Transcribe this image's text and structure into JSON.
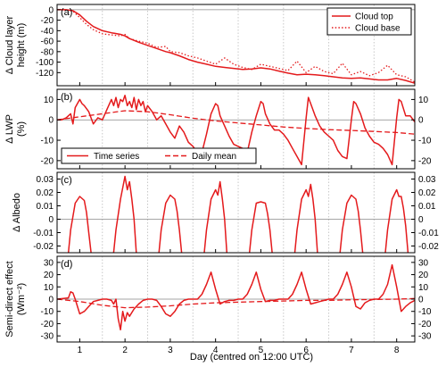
{
  "figure": {
    "xlabel": "Day (centred on 12:00 UTC)",
    "xticks": [
      1,
      2,
      3,
      4,
      5,
      6,
      7,
      8
    ],
    "xlim": [
      0.5,
      8.4
    ],
    "day_lines": [
      1.5,
      2.5,
      3.5,
      4.5,
      5.5,
      6.5,
      7.5
    ]
  },
  "colors": {
    "series": "#e41a1c",
    "axis": "#000000",
    "zero_line": "#888888",
    "day_line": "#c8c8c8"
  },
  "chart_data": [
    {
      "type": "line",
      "panel_label": "(a)",
      "ylabel_line1": "Δ Cloud layer",
      "ylabel_line2": "height (m)",
      "ylim": [
        -145,
        10
      ],
      "yticks": [
        0,
        -20,
        -40,
        -60,
        -80,
        -100,
        -120
      ],
      "right_ticks": false,
      "legend_position": "top-right",
      "series": [
        {
          "name": "Cloud top",
          "style": "solid",
          "x": [
            0.5,
            0.7,
            0.85,
            1.0,
            1.15,
            1.3,
            1.5,
            1.7,
            1.9,
            2.0,
            2.1,
            2.3,
            2.5,
            2.7,
            2.9,
            3.0,
            3.2,
            3.4,
            3.6,
            3.8,
            4.0,
            4.2,
            4.4,
            4.6,
            4.8,
            5.0,
            5.2,
            5.4,
            5.6,
            5.8,
            6.0,
            6.2,
            6.4,
            6.6,
            6.8,
            7.0,
            7.2,
            7.4,
            7.6,
            7.8,
            8.0,
            8.2,
            8.4
          ],
          "y": [
            0,
            0,
            -2,
            -10,
            -22,
            -32,
            -40,
            -44,
            -47,
            -50,
            -55,
            -62,
            -68,
            -74,
            -80,
            -82,
            -88,
            -95,
            -100,
            -104,
            -108,
            -110,
            -112,
            -114,
            -113,
            -111,
            -113,
            -117,
            -121,
            -124,
            -123,
            -124,
            -126,
            -128,
            -130,
            -131,
            -130,
            -132,
            -134,
            -134,
            -131,
            -135,
            -140
          ]
        },
        {
          "name": "Cloud base",
          "style": "dotted",
          "x": [
            0.5,
            0.7,
            0.85,
            1.0,
            1.15,
            1.3,
            1.5,
            1.7,
            1.9,
            2.0,
            2.1,
            2.3,
            2.5,
            2.7,
            2.9,
            3.0,
            3.2,
            3.4,
            3.6,
            3.8,
            4.0,
            4.2,
            4.4,
            4.6,
            4.8,
            5.0,
            5.2,
            5.4,
            5.6,
            5.8,
            6.0,
            6.2,
            6.4,
            6.6,
            6.8,
            7.0,
            7.2,
            7.4,
            7.6,
            7.8,
            8.0,
            8.2,
            8.4
          ],
          "y": [
            0,
            0,
            -3,
            -15,
            -28,
            -38,
            -46,
            -48,
            -50,
            -47,
            -55,
            -60,
            -64,
            -72,
            -70,
            -80,
            -82,
            -88,
            -92,
            -98,
            -104,
            -92,
            -104,
            -110,
            -114,
            -104,
            -108,
            -112,
            -116,
            -98,
            -120,
            -108,
            -118,
            -122,
            -102,
            -124,
            -118,
            -126,
            -120,
            -106,
            -124,
            -128,
            -138
          ]
        }
      ]
    },
    {
      "type": "line",
      "panel_label": "(b)",
      "ylabel_line1": "Δ LWP",
      "ylabel_line2": "(%)",
      "ylim": [
        -24,
        15
      ],
      "yticks": [
        10,
        0,
        -10,
        -20
      ],
      "right_ticks": true,
      "legend_position": "lower-left",
      "series": [
        {
          "name": "Time series",
          "style": "solid",
          "x": [
            0.5,
            0.6,
            0.7,
            0.8,
            0.85,
            0.9,
            0.95,
            1.0,
            1.05,
            1.1,
            1.2,
            1.3,
            1.4,
            1.5,
            1.6,
            1.7,
            1.75,
            1.8,
            1.85,
            1.9,
            1.95,
            2.0,
            2.05,
            2.1,
            2.15,
            2.2,
            2.25,
            2.3,
            2.35,
            2.4,
            2.45,
            2.5,
            2.6,
            2.7,
            2.8,
            2.9,
            3.0,
            3.1,
            3.2,
            3.3,
            3.4,
            3.5,
            3.6,
            3.7,
            3.8,
            3.9,
            4.0,
            4.05,
            4.1,
            4.2,
            4.3,
            4.4,
            4.5,
            4.6,
            4.7,
            4.8,
            4.9,
            5.0,
            5.05,
            5.1,
            5.2,
            5.3,
            5.4,
            5.5,
            5.6,
            5.7,
            5.8,
            5.9,
            6.0,
            6.05,
            6.1,
            6.2,
            6.3,
            6.4,
            6.5,
            6.6,
            6.7,
            6.8,
            6.9,
            7.0,
            7.05,
            7.1,
            7.2,
            7.3,
            7.4,
            7.5,
            7.6,
            7.7,
            7.8,
            7.9,
            8.0,
            8.05,
            8.1,
            8.2,
            8.3,
            8.4
          ],
          "y": [
            0,
            0,
            1,
            3,
            -2,
            6,
            8,
            10,
            8,
            7,
            4,
            -2,
            1,
            0,
            5,
            10,
            7,
            11,
            6,
            10,
            9,
            12,
            7,
            9,
            6,
            11,
            5,
            10,
            7,
            9,
            4,
            7,
            4,
            0,
            2,
            -2,
            -6,
            -9,
            -3,
            -6,
            -11,
            -13,
            -16,
            -16,
            -7,
            3,
            8,
            7,
            2,
            -3,
            -8,
            -12,
            -13,
            -14,
            -16,
            -6,
            2,
            9,
            8,
            3,
            -2,
            -5,
            -5,
            -7,
            -10,
            -14,
            -18,
            -22,
            1,
            11,
            8,
            2,
            -3,
            -6,
            -8,
            -10,
            -15,
            -18,
            -19,
            0,
            9,
            8,
            3,
            -4,
            -8,
            -11,
            -12,
            -14,
            -17,
            -22,
            1,
            10,
            9,
            2,
            2,
            -1
          ]
        },
        {
          "name": "Daily mean",
          "style": "dashed",
          "x": [
            0.5,
            1.0,
            1.5,
            2.0,
            2.5,
            3.0,
            3.5,
            4.0,
            4.5,
            5.0,
            5.5,
            6.0,
            6.5,
            7.0,
            7.5,
            8.0,
            8.4
          ],
          "y": [
            0,
            1.5,
            3,
            4.5,
            4,
            2.5,
            0.8,
            -0.5,
            -1.5,
            -2.5,
            -3.5,
            -4.2,
            -4.8,
            -5.2,
            -5.7,
            -6.2,
            -7
          ]
        }
      ]
    },
    {
      "type": "line",
      "panel_label": "(c)",
      "ylabel_line1": "Δ Albedo",
      "ylabel_line2": "",
      "ylim": [
        -0.025,
        0.035
      ],
      "yticks": [
        0.03,
        0.02,
        0.01,
        0,
        -0.01,
        -0.02
      ],
      "ytick_labels": [
        "0.03",
        "0.02",
        "0.01",
        "0",
        "-0.01",
        "-0.02"
      ],
      "right_ticks": true,
      "series": [
        {
          "name": "",
          "style": "solid",
          "segments": [
            {
              "x": [
                0.75,
                0.8,
                0.9,
                1.0,
                1.1,
                1.15,
                1.2,
                1.25
              ],
              "y": [
                -0.025,
                -0.008,
                0.012,
                0.017,
                0.014,
                0.005,
                -0.01,
                -0.025
              ]
            },
            {
              "x": [
                1.75,
                1.8,
                1.9,
                2.0,
                2.05,
                2.1,
                2.15,
                2.2,
                2.25
              ],
              "y": [
                -0.025,
                -0.008,
                0.015,
                0.032,
                0.022,
                0.028,
                0.015,
                0.0,
                -0.025
              ]
            },
            {
              "x": [
                2.75,
                2.8,
                2.9,
                3.0,
                3.1,
                3.15,
                3.2,
                3.25
              ],
              "y": [
                -0.025,
                -0.008,
                0.012,
                0.018,
                0.015,
                0.006,
                -0.008,
                -0.025
              ]
            },
            {
              "x": [
                3.75,
                3.8,
                3.9,
                4.0,
                4.05,
                4.1,
                4.15,
                4.2,
                4.25
              ],
              "y": [
                -0.025,
                -0.008,
                0.015,
                0.022,
                0.018,
                0.028,
                0.015,
                0.0,
                -0.025
              ]
            },
            {
              "x": [
                4.75,
                4.8,
                4.9,
                5.0,
                5.1,
                5.15,
                5.2,
                5.25
              ],
              "y": [
                -0.025,
                -0.008,
                0.012,
                0.013,
                0.012,
                0.004,
                -0.008,
                -0.025
              ]
            },
            {
              "x": [
                5.75,
                5.8,
                5.9,
                6.0,
                6.05,
                6.1,
                6.15,
                6.2,
                6.25
              ],
              "y": [
                -0.025,
                -0.008,
                0.015,
                0.022,
                0.017,
                0.026,
                0.015,
                0.0,
                -0.025
              ]
            },
            {
              "x": [
                6.75,
                6.8,
                6.9,
                7.0,
                7.1,
                7.15,
                7.2,
                7.25
              ],
              "y": [
                -0.025,
                -0.008,
                0.012,
                0.018,
                0.015,
                0.006,
                -0.008,
                -0.025
              ]
            },
            {
              "x": [
                7.75,
                7.8,
                7.9,
                8.0,
                8.05,
                8.1,
                8.15,
                8.2,
                8.25
              ],
              "y": [
                -0.025,
                -0.008,
                0.015,
                0.022,
                0.017,
                0.017,
                0.008,
                -0.005,
                -0.025
              ]
            }
          ]
        }
      ]
    },
    {
      "type": "line",
      "panel_label": "(d)",
      "ylabel_line1": "Semi-direct effect",
      "ylabel_line2": "(Wm⁻²)",
      "ylim": [
        -35,
        35
      ],
      "yticks": [
        30,
        20,
        10,
        0,
        -10,
        -20,
        -30
      ],
      "right_ticks": true,
      "series": [
        {
          "name": "",
          "style": "solid",
          "x": [
            0.5,
            0.75,
            0.8,
            0.85,
            0.9,
            1.0,
            1.1,
            1.2,
            1.3,
            1.4,
            1.5,
            1.6,
            1.7,
            1.75,
            1.8,
            1.85,
            1.9,
            1.95,
            2.0,
            2.05,
            2.1,
            2.2,
            2.3,
            2.4,
            2.5,
            2.6,
            2.7,
            2.8,
            2.9,
            3.0,
            3.1,
            3.2,
            3.3,
            3.4,
            3.5,
            3.6,
            3.7,
            3.8,
            3.9,
            4.0,
            4.1,
            4.2,
            4.3,
            4.4,
            4.5,
            4.6,
            4.7,
            4.8,
            4.9,
            5.0,
            5.1,
            5.2,
            5.3,
            5.4,
            5.5,
            5.6,
            5.7,
            5.8,
            5.9,
            6.0,
            6.1,
            6.2,
            6.3,
            6.4,
            6.5,
            6.6,
            6.7,
            6.8,
            6.9,
            7.0,
            7.1,
            7.2,
            7.3,
            7.4,
            7.5,
            7.6,
            7.7,
            7.8,
            7.9,
            8.0,
            8.1,
            8.2,
            8.3,
            8.4
          ],
          "y": [
            0,
            1,
            6,
            5,
            0,
            -12,
            -10,
            -6,
            -2,
            -1,
            0,
            0,
            -1,
            -4,
            0,
            -16,
            -25,
            -10,
            -18,
            -11,
            -14,
            -8,
            -4,
            -1,
            0,
            0,
            -1,
            -6,
            -12,
            -14,
            -10,
            -4,
            -1,
            0,
            0,
            0,
            4,
            12,
            22,
            8,
            -4,
            -2,
            -1,
            -1,
            0,
            0,
            4,
            12,
            22,
            8,
            -2,
            -1,
            -1,
            0,
            0,
            0,
            4,
            12,
            22,
            8,
            -4,
            -3,
            -2,
            -1,
            0,
            0,
            4,
            12,
            22,
            10,
            -6,
            -8,
            -3,
            -1,
            0,
            0,
            4,
            12,
            28,
            10,
            -10,
            -6,
            -3,
            -1
          ]
        },
        {
          "name": "",
          "style": "dashed",
          "x": [
            0.5,
            1.0,
            1.5,
            2.0,
            2.5,
            3.0,
            3.5,
            4.0,
            4.5,
            5.0,
            5.5,
            6.0,
            6.5,
            7.0,
            7.5,
            8.0,
            8.4
          ],
          "y": [
            0,
            -2,
            -5,
            -7,
            -6.5,
            -5.5,
            -4,
            -3,
            -2.5,
            -2,
            -1.5,
            -1,
            -1,
            -0.5,
            -0.3,
            0,
            0.5
          ]
        }
      ]
    }
  ]
}
